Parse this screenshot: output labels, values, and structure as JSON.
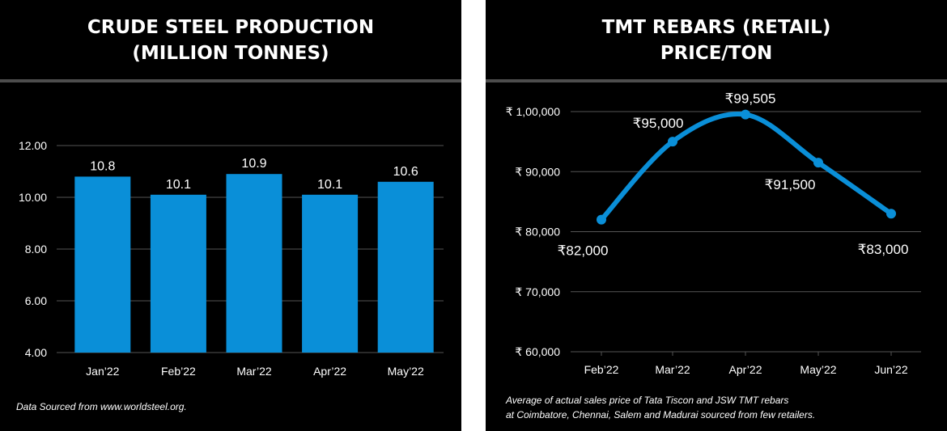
{
  "left": {
    "title_line1": "CRUDE STEEL PRODUCTION",
    "title_line2": "(MILLION TONNES)",
    "note": "Data Sourced from www.worldsteel.org."
  },
  "right": {
    "title_line1": "TMT REBARS (RETAIL)",
    "title_line2": "PRICE/TON",
    "note_line1": "Average of actual sales price of Tata Tiscon and JSW TMT rebars",
    "note_line2": "at Coimbatore, Chennai, Salem and Madurai sourced from few retailers."
  },
  "colors": {
    "bar": "#0a8fd8",
    "line": "#0a8fd8",
    "grid": "#555555",
    "text": "#ffffff",
    "background": "#000000"
  },
  "chart_data": [
    {
      "type": "bar",
      "title": "CRUDE STEEL PRODUCTION (MILLION TONNES)",
      "categories": [
        "Jan’22",
        "Feb’22",
        "Mar’22",
        "Apr’22",
        "May’22"
      ],
      "values": [
        10.8,
        10.1,
        10.9,
        10.1,
        10.6
      ],
      "data_labels": [
        "10.8",
        "10.1",
        "10.9",
        "10.1",
        "10.6"
      ],
      "ylim": [
        4.0,
        12.0
      ],
      "yticks": [
        4.0,
        6.0,
        8.0,
        10.0,
        12.0
      ],
      "ytick_labels": [
        "4.00",
        "6.00",
        "8.00",
        "10.00",
        "12.00"
      ],
      "grid": true,
      "legend": "none"
    },
    {
      "type": "line",
      "title": "TMT REBARS (RETAIL) PRICE/TON",
      "categories": [
        "Feb’22",
        "Mar’22",
        "Apr’22",
        "May’22",
        "Jun’22"
      ],
      "values": [
        82000,
        95000,
        99505,
        91500,
        83000
      ],
      "data_labels": [
        "₹82,000",
        "₹95,000",
        "₹99,505",
        "₹91,500",
        "₹83,000"
      ],
      "ylim": [
        60000,
        100000
      ],
      "yticks": [
        60000,
        70000,
        80000,
        90000,
        100000
      ],
      "ytick_labels": [
        "₹ 60,000",
        "₹ 70,000",
        "₹ 80,000",
        "₹ 90,000",
        "₹ 1,00,000"
      ],
      "smooth": true,
      "markers": true,
      "grid": true,
      "legend": "none"
    }
  ]
}
